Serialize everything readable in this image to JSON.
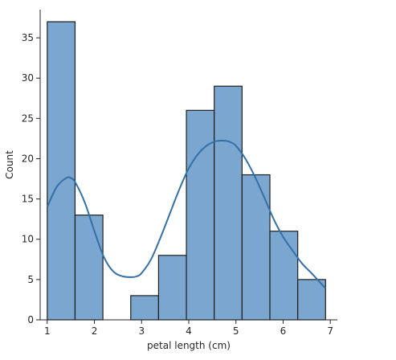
{
  "chart_data": {
    "type": "bar",
    "subtype": "histogram-with-kde",
    "title": "",
    "xlabel": "petal length (cm)",
    "ylabel": "Count",
    "xlim": [
      0.85,
      7.15
    ],
    "ylim": [
      0,
      38.5
    ],
    "xticks": [
      1,
      2,
      3,
      4,
      5,
      6,
      7
    ],
    "yticks": [
      0,
      5,
      10,
      15,
      20,
      25,
      30,
      35
    ],
    "grid": false,
    "legend": "none",
    "bin_edges": [
      1.0,
      1.59,
      2.18,
      2.77,
      3.36,
      3.95,
      4.54,
      5.13,
      5.72,
      6.31,
      6.9
    ],
    "values": [
      37,
      13,
      0,
      3,
      8,
      26,
      29,
      18,
      11,
      5
    ],
    "kde": {
      "x": [
        1.0,
        1.2,
        1.4,
        1.5,
        1.6,
        1.8,
        2.0,
        2.2,
        2.4,
        2.6,
        2.8,
        2.9,
        3.0,
        3.2,
        3.4,
        3.6,
        3.8,
        4.0,
        4.2,
        4.4,
        4.6,
        4.8,
        4.9,
        5.0,
        5.2,
        5.4,
        5.6,
        5.8,
        6.0,
        6.2,
        6.4,
        6.6,
        6.9
      ],
      "y": [
        14.0,
        16.5,
        17.6,
        17.6,
        17.0,
        14.5,
        11.0,
        7.8,
        6.0,
        5.4,
        5.3,
        5.4,
        5.8,
        7.5,
        10.2,
        13.2,
        16.2,
        18.8,
        20.6,
        21.7,
        22.2,
        22.2,
        22.0,
        21.6,
        20.0,
        17.8,
        15.2,
        12.5,
        10.3,
        8.6,
        7.0,
        5.8,
        3.9
      ]
    }
  },
  "colors": {
    "bar_fill": "#7aa6cf",
    "bar_edge": "#1f1f1f",
    "kde_line": "#3370a8",
    "axis": "#262626"
  }
}
